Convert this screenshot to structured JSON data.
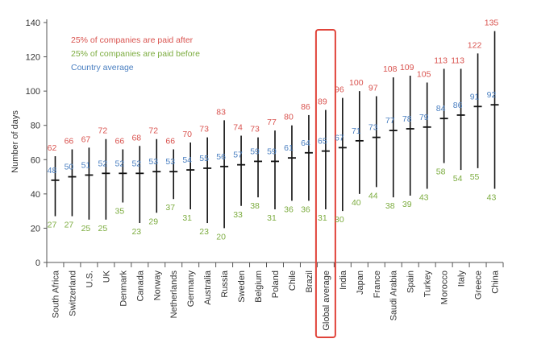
{
  "chart_data": {
    "type": "range",
    "ylabel": "Number of days",
    "ylim": [
      0,
      140
    ],
    "yticks": [
      0,
      20,
      40,
      60,
      80,
      100,
      120,
      140
    ],
    "categories": [
      "South Africa",
      "Switzerland",
      "U.S.",
      "UK",
      "Denmark",
      "Canada",
      "Norway",
      "Netherlands",
      "Germany",
      "Australia",
      "Russia",
      "Sweden",
      "Belgium",
      "Poland",
      "Chile",
      "Brazil",
      "Global average",
      "India",
      "Japan",
      "France",
      "Saudi Arabia",
      "Spain",
      "Turkey",
      "Morocco",
      "Italy",
      "Greece",
      "China"
    ],
    "highlight": "Global average",
    "series": [
      {
        "name": "25% of companies are paid after",
        "color": "#d9534f",
        "values": [
          62,
          66,
          67,
          72,
          66,
          68,
          72,
          66,
          70,
          73,
          83,
          74,
          73,
          77,
          80,
          86,
          89,
          96,
          100,
          97,
          108,
          109,
          105,
          113,
          113,
          122,
          135
        ]
      },
      {
        "name": "25% of companies are paid before",
        "color": "#7cac3f",
        "values": [
          27,
          27,
          25,
          25,
          35,
          23,
          29,
          37,
          31,
          23,
          20,
          33,
          38,
          31,
          36,
          36,
          31,
          30,
          40,
          44,
          38,
          39,
          43,
          58,
          54,
          55,
          43
        ]
      },
      {
        "name": "Country average",
        "color": "#4a7fc1",
        "values": [
          48,
          50,
          51,
          52,
          52,
          52,
          53,
          53,
          54,
          55,
          56,
          57,
          59,
          59,
          61,
          64,
          65,
          67,
          71,
          73,
          77,
          78,
          79,
          84,
          86,
          91,
          92
        ]
      }
    ]
  }
}
